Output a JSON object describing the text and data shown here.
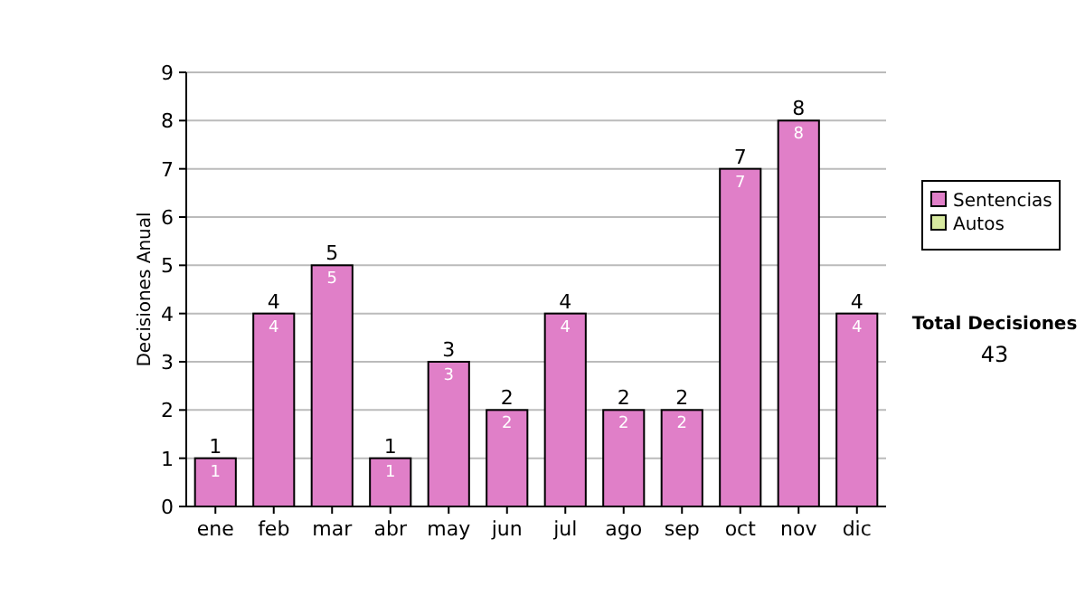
{
  "chart_data": {
    "type": "bar",
    "stacked": true,
    "ylabel": "Decisiones Anual",
    "categories": [
      "ene",
      "feb",
      "mar",
      "abr",
      "may",
      "jun",
      "jul",
      "ago",
      "sep",
      "oct",
      "nov",
      "dic"
    ],
    "series": [
      {
        "name": "Sentencias",
        "color": "#e07fc8",
        "values": [
          1,
          4,
          5,
          1,
          3,
          2,
          4,
          2,
          2,
          7,
          8,
          4
        ],
        "value_labels": [
          "1",
          "4",
          "5",
          "1",
          "3",
          "2",
          "4",
          "2",
          "2",
          "7",
          "8",
          "4"
        ]
      },
      {
        "name": "Autos",
        "color": "#d8eaa0",
        "values": [
          0,
          0,
          0,
          0,
          0,
          0,
          0,
          0,
          0,
          0,
          0,
          0
        ],
        "value_labels": [
          null,
          null,
          null,
          null,
          null,
          null,
          null,
          null,
          null,
          null,
          null,
          null
        ]
      }
    ],
    "totals": [
      "1",
      "4",
      "5",
      "1",
      "3",
      "2",
      "4",
      "2",
      "2",
      "7",
      "8",
      "4"
    ],
    "ylim": [
      0,
      9
    ],
    "yticks": [
      0,
      1,
      2,
      3,
      4,
      5,
      6,
      7,
      8,
      9
    ],
    "grid": "y",
    "legend": "right",
    "annotations": [
      "Total Decisiones",
      "43"
    ]
  }
}
